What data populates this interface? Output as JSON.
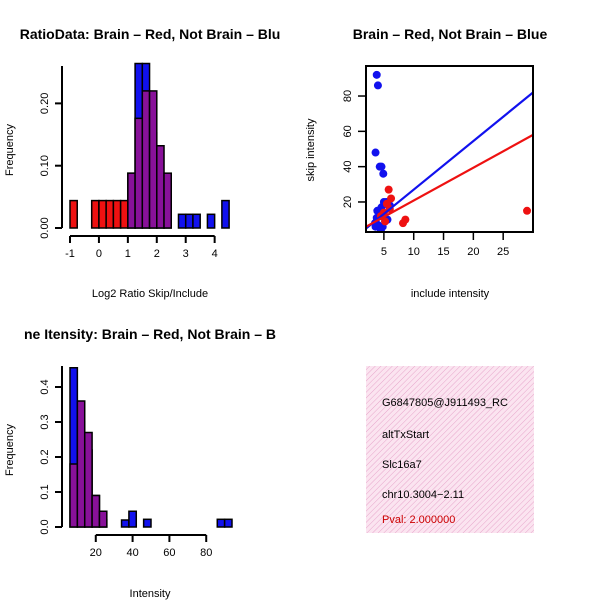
{
  "colors": {
    "red": "#ee1111",
    "blue": "#1111ee",
    "overlap": "#881199",
    "panel": "#f7d7ea"
  },
  "chart_data": [
    {
      "type": "histogram",
      "title": "RatioData: Brain – Red, Not Brain – Blu",
      "xlabel": "Log2 Ratio Skip/Include",
      "ylabel": "Frequency",
      "xlim": [
        -1,
        4.6
      ],
      "ylim": [
        0,
        0.26
      ],
      "xticks": [
        "-1",
        "0",
        "1",
        "2",
        "3",
        "4"
      ],
      "xtick_values": [
        -1,
        0,
        1,
        2,
        3,
        4
      ],
      "yticks": [
        "0.00",
        "0.10",
        "0.20"
      ],
      "ytick_values": [
        0,
        0.1,
        0.2
      ],
      "series": [
        {
          "name": "Not Brain",
          "bins_left": [
            1.0,
            1.25,
            1.5,
            1.75,
            2.0,
            2.25,
            2.75,
            3.0,
            3.25,
            3.75,
            4.25
          ],
          "bin_width": 0.25,
          "values": [
            0.088,
            0.264,
            0.264,
            0.153,
            0.066,
            0.022,
            0.022,
            0.022,
            0.022,
            0.022,
            0.044
          ]
        },
        {
          "name": "Brain",
          "bins_left": [
            -1.0,
            -0.5,
            -0.25,
            0.0,
            0.25,
            0.5,
            0.75,
            1.0,
            1.25,
            1.5,
            1.75,
            2.0,
            2.25
          ],
          "bin_width": 0.25,
          "values": [
            0.044,
            0.0,
            0.044,
            0.044,
            0.044,
            0.044,
            0.044,
            0.088,
            0.176,
            0.22,
            0.22,
            0.132,
            0.088
          ]
        }
      ]
    },
    {
      "type": "scatter",
      "title": "Brain – Red, Not Brain – Blue",
      "xlabel": "include intensity",
      "ylabel": "skip intensity",
      "xlim": [
        2,
        30
      ],
      "ylim": [
        3,
        97
      ],
      "xticks": [
        "5",
        "10",
        "15",
        "20",
        "25"
      ],
      "xtick_values": [
        5,
        10,
        15,
        20,
        25
      ],
      "yticks": [
        "20",
        "40",
        "60",
        "80"
      ],
      "ytick_values": [
        20,
        40,
        60,
        80
      ],
      "series": [
        {
          "name": "Not Brain",
          "x": [
            3.8,
            4.0,
            3.6,
            4.3,
            4.6,
            4.9,
            3.5,
            3.8,
            4.2,
            4.6,
            5.0,
            5.4,
            5.8,
            3.9,
            4.4,
            5.2,
            3.6,
            4.0,
            4.8,
            5.6,
            6.0,
            4.5
          ],
          "y": [
            92,
            86,
            48,
            40,
            40,
            36,
            8,
            11,
            14,
            17,
            20,
            20,
            18,
            15,
            12,
            9,
            6,
            7,
            6,
            10,
            18,
            4
          ],
          "fit": {
            "x0": 2,
            "y0": 5,
            "x1": 30,
            "y1": 82
          }
        },
        {
          "name": "Brain",
          "x": [
            5.8,
            6.2,
            5.5,
            6.0,
            5.0,
            4.5,
            8.2,
            8.6,
            29.0,
            5.2
          ],
          "y": [
            27,
            22,
            19,
            16,
            14,
            12,
            8,
            10,
            15,
            9
          ],
          "fit": {
            "x0": 2,
            "y0": 6,
            "x1": 30,
            "y1": 58
          }
        }
      ]
    },
    {
      "type": "histogram",
      "title": "ne Itensity: Brain – Red, Not Brain – B",
      "xlabel": "Intensity",
      "ylabel": "Frequency",
      "xlim": [
        6,
        94
      ],
      "ylim": [
        0,
        0.46
      ],
      "xticks": [
        "20",
        "40",
        "60",
        "80"
      ],
      "xtick_values": [
        20,
        40,
        60,
        80
      ],
      "yticks": [
        "0.0",
        "0.1",
        "0.2",
        "0.3",
        "0.4"
      ],
      "ytick_values": [
        0,
        0.1,
        0.2,
        0.3,
        0.4
      ],
      "series": [
        {
          "name": "Not Brain",
          "bins_left": [
            6,
            10,
            14,
            18,
            22,
            34,
            38,
            46,
            86,
            90
          ],
          "bin_width": 4,
          "values": [
            0.455,
            0.3,
            0.22,
            0.09,
            0.02,
            0.02,
            0.045,
            0.022,
            0.022,
            0.022
          ]
        },
        {
          "name": "Brain",
          "bins_left": [
            6,
            10,
            14,
            18,
            22
          ],
          "bin_width": 4,
          "values": [
            0.18,
            0.36,
            0.27,
            0.09,
            0.045
          ]
        }
      ]
    }
  ],
  "info_panel": {
    "lines": [
      "G6847805@J911493_RC",
      "altTxStart",
      "Slc16a7",
      "chr10.3004−2.11"
    ],
    "pval": "Pval: 2.000000"
  }
}
